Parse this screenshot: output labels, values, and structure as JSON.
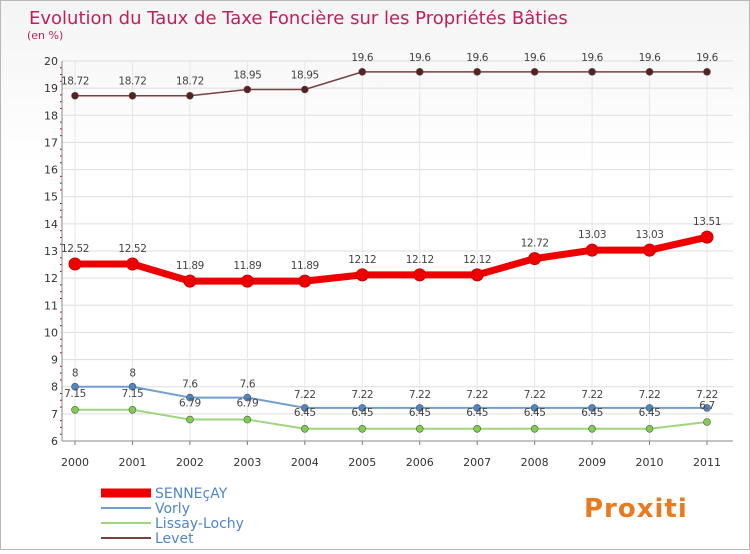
{
  "chart_data": {
    "type": "line",
    "title": "Evolution du Taux de Taxe Foncière sur les Propriétés Bâties",
    "subtitle": "(en %)",
    "xlabel": "",
    "ylabel": "",
    "x": [
      "2000",
      "2001",
      "2002",
      "2003",
      "2004",
      "2005",
      "2006",
      "2007",
      "2008",
      "2009",
      "2010",
      "2011"
    ],
    "ylim": [
      6,
      20
    ],
    "yticks": [
      "6",
      "7",
      "8",
      "9",
      "10",
      "11",
      "12",
      "13",
      "14",
      "15",
      "16",
      "17",
      "18",
      "19",
      "20"
    ],
    "grid": true,
    "legend_position": "bottom-left",
    "series": [
      {
        "name": "SENNEçAY",
        "color": "#ee0000",
        "values": [
          12.52,
          12.52,
          11.89,
          11.89,
          11.89,
          12.12,
          12.12,
          12.12,
          12.72,
          13.03,
          13.03,
          13.51
        ],
        "labels": [
          "12.52",
          "12.52",
          "11.89",
          "11.89",
          "11.89",
          "12.12",
          "12.12",
          "12.12",
          "12.72",
          "13.03",
          "13.03",
          "13.51"
        ]
      },
      {
        "name": "Vorly",
        "color": "#6f9fcf",
        "values": [
          8,
          8,
          7.6,
          7.6,
          7.22,
          7.22,
          7.22,
          7.22,
          7.22,
          7.22,
          7.22,
          7.22
        ],
        "labels": [
          "8",
          "8",
          "7.6",
          "7.6",
          "7.22",
          "7.22",
          "7.22",
          "7.22",
          "7.22",
          "7.22",
          "7.22",
          "7.22"
        ]
      },
      {
        "name": "Lissay-Lochy",
        "color": "#9fd57f",
        "values": [
          7.15,
          7.15,
          6.79,
          6.79,
          6.45,
          6.45,
          6.45,
          6.45,
          6.45,
          6.45,
          6.45,
          6.7
        ],
        "labels": [
          "7.15",
          "7.15",
          "6.79",
          "6.79",
          "6.45",
          "6.45",
          "6.45",
          "6.45",
          "6.45",
          "6.45",
          "6.45",
          "6.7"
        ]
      },
      {
        "name": "Levet",
        "color": "#7a4040",
        "values": [
          18.72,
          18.72,
          18.72,
          18.95,
          18.95,
          19.6,
          19.6,
          19.6,
          19.6,
          19.6,
          19.6,
          19.6
        ],
        "labels": [
          "18.72",
          "18.72",
          "18.72",
          "18.95",
          "18.95",
          "19.6",
          "19.6",
          "19.6",
          "19.6",
          "19.6",
          "19.6",
          "19.6"
        ]
      }
    ]
  },
  "logo": {
    "text": "Proxiti"
  }
}
